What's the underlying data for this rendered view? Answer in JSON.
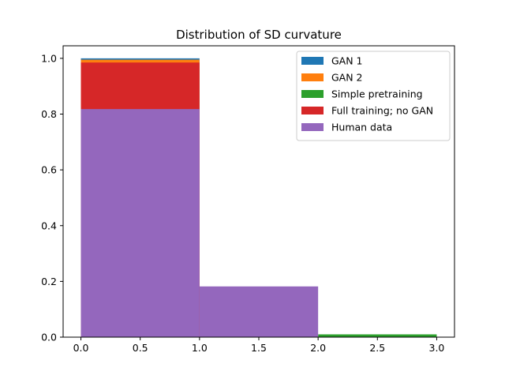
{
  "chart_data": {
    "type": "bar",
    "title": "Distribution of SD curvature",
    "xlabel": "",
    "ylabel": "",
    "xlim": [
      -0.15,
      3.15
    ],
    "ylim": [
      0,
      1.045
    ],
    "xticks": [
      "0.0",
      "0.5",
      "1.0",
      "1.5",
      "2.0",
      "2.5",
      "3.0"
    ],
    "xtick_values": [
      0,
      0.5,
      1,
      1.5,
      2,
      2.5,
      3
    ],
    "yticks": [
      "0.0",
      "0.2",
      "0.4",
      "0.6",
      "0.8",
      "1.0"
    ],
    "ytick_values": [
      0,
      0.2,
      0.4,
      0.6,
      0.8,
      1.0
    ],
    "bins": [
      [
        0,
        1
      ],
      [
        1,
        2
      ],
      [
        2,
        3
      ]
    ],
    "grid": false,
    "legend_position": "top-right",
    "series": [
      {
        "name": "GAN 1",
        "color": "#1f77b4",
        "values": [
          1.0,
          0.0,
          0.0
        ]
      },
      {
        "name": "GAN 2",
        "color": "#ff7f0e",
        "values": [
          0.995,
          0.0,
          0.0
        ]
      },
      {
        "name": "Simple pretraining",
        "color": "#2ca02c",
        "values": [
          0.0,
          0.0,
          0.01
        ]
      },
      {
        "name": "Full training; no GAN",
        "color": "#d62728",
        "values": [
          0.985,
          0.0,
          0.0
        ]
      },
      {
        "name": "Human data",
        "color": "#9467bd",
        "values": [
          0.818,
          0.182,
          0.0
        ]
      }
    ]
  }
}
